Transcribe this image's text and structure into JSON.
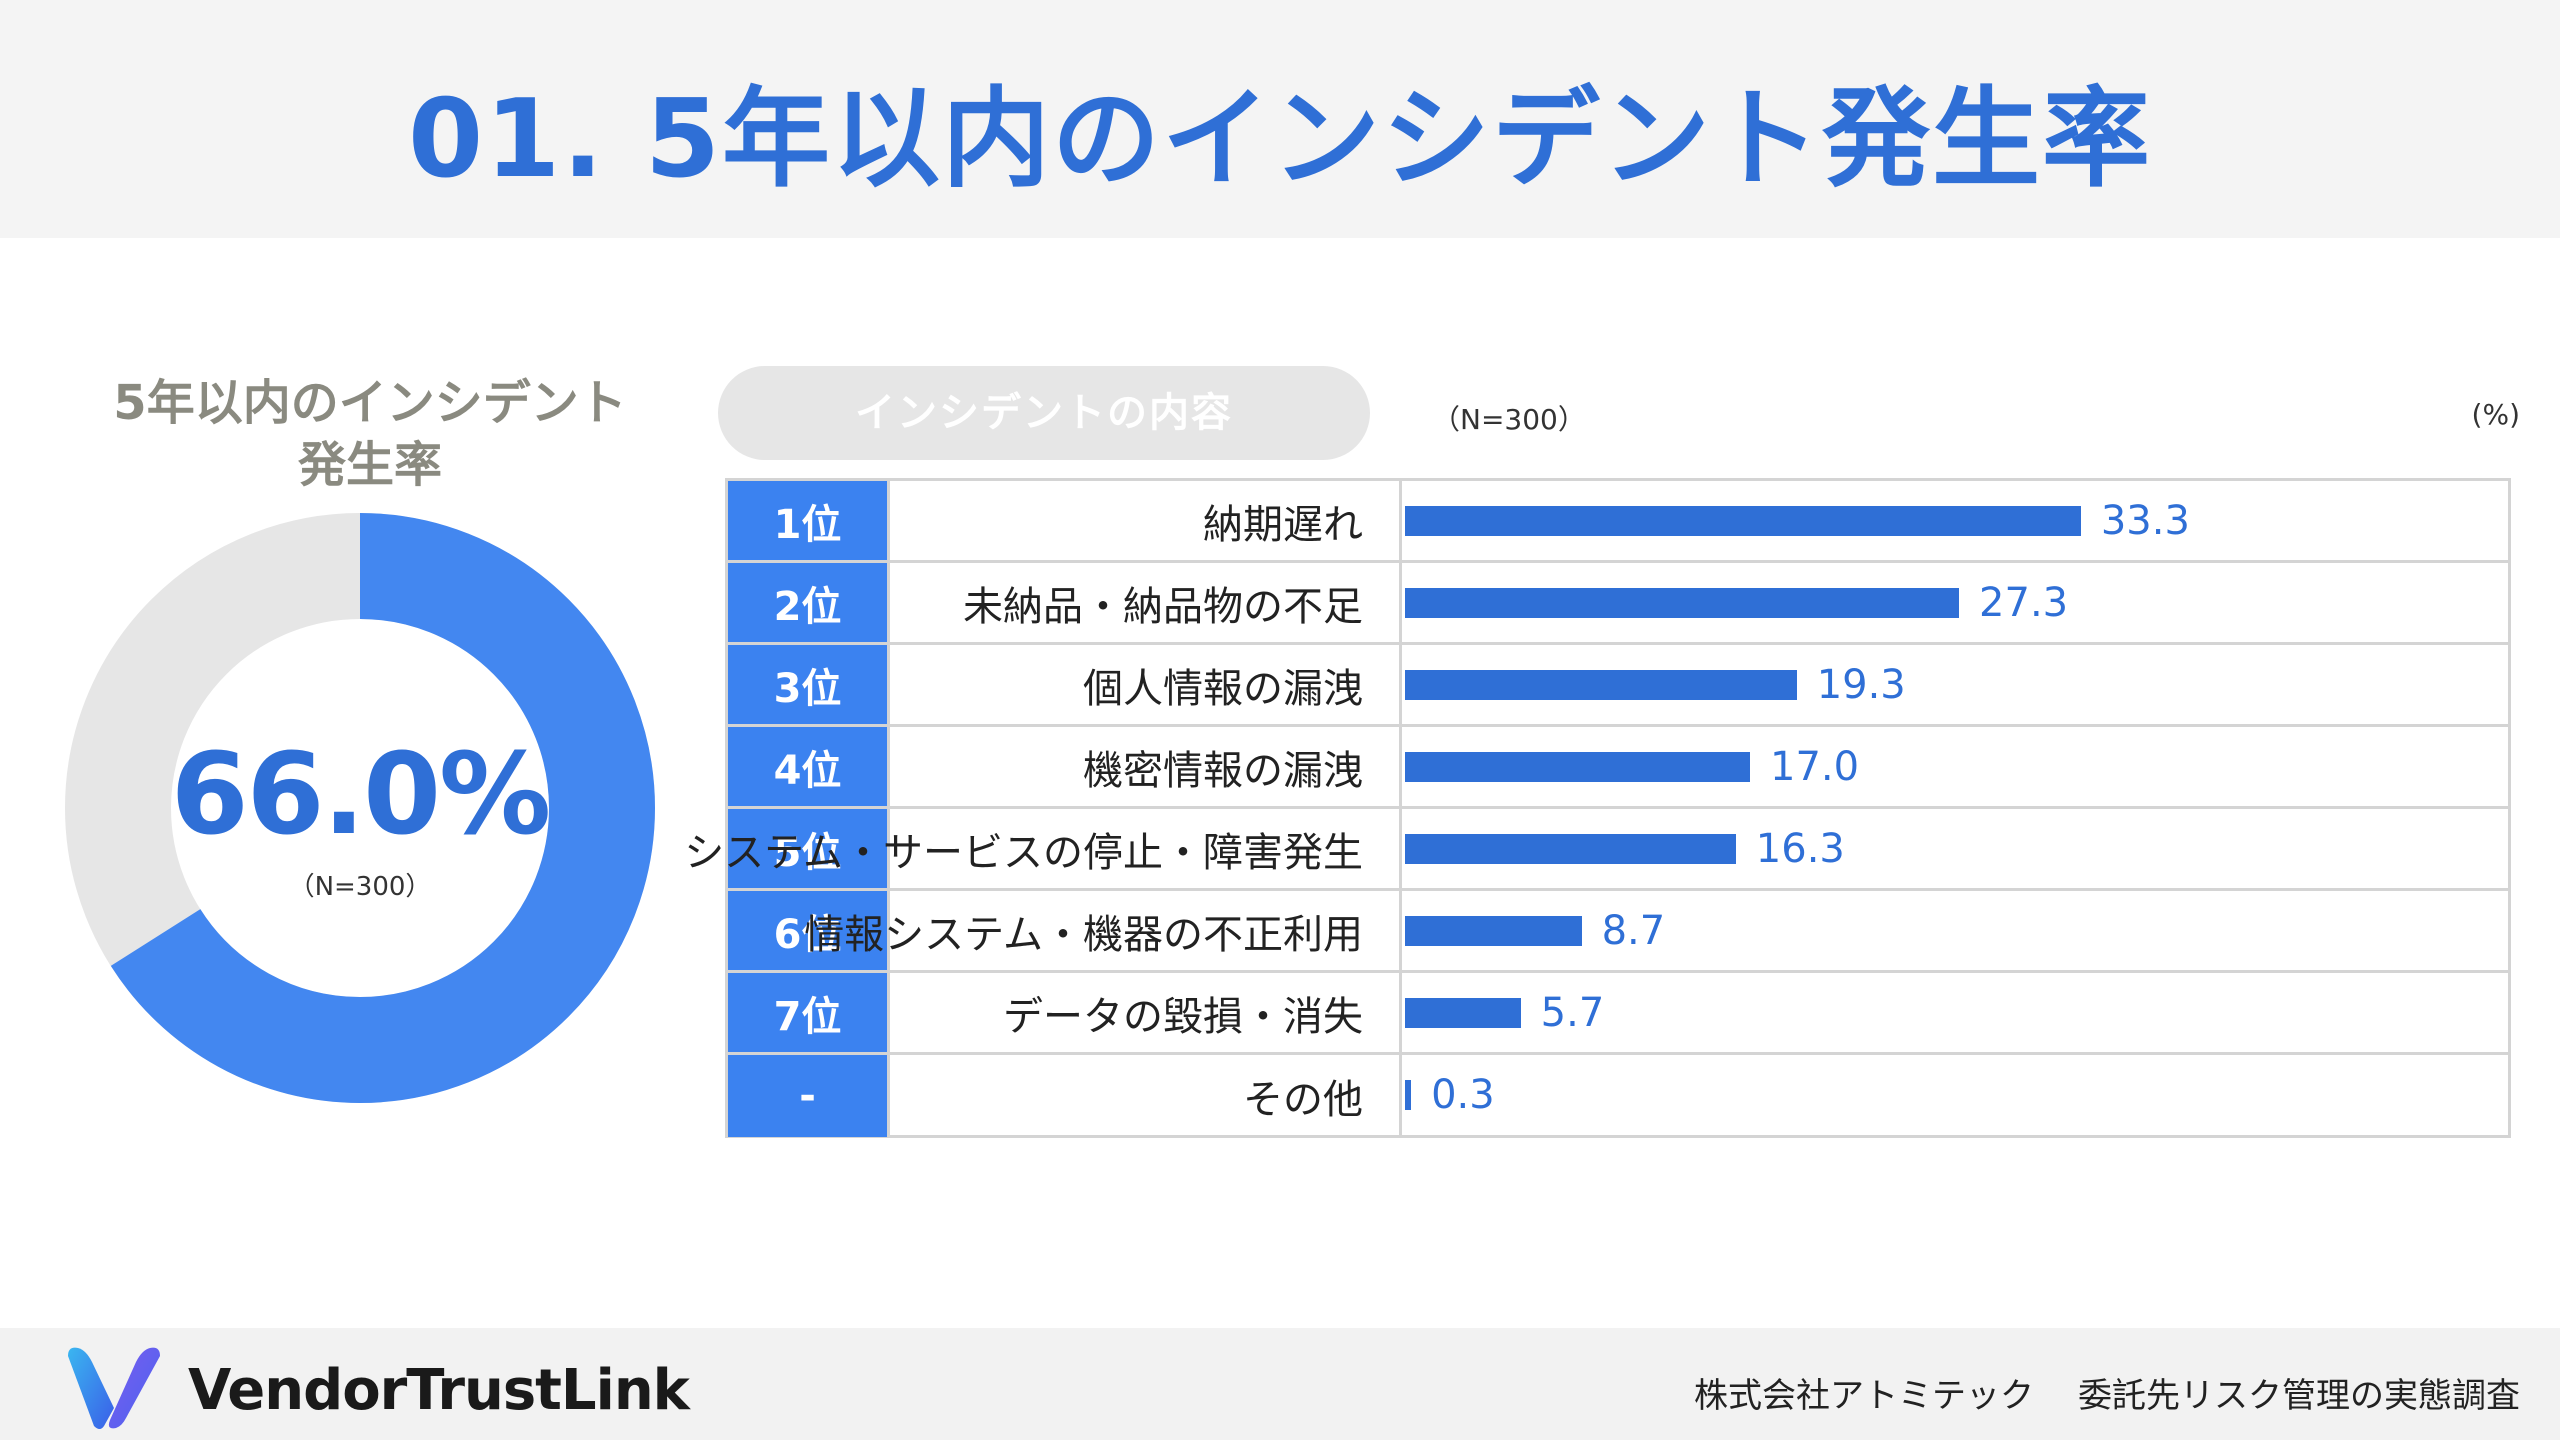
{
  "title": "01. 5年以内のインシデント発生率",
  "donut": {
    "title_line1": "5年以内のインシデント",
    "title_line2": "発生率",
    "percent_label": "66.0%",
    "n_label": "（N=300）",
    "value": 66.0,
    "colors": {
      "fill": "#4387f0",
      "rest": "#e6e6e6"
    }
  },
  "table_header": {
    "pill_label": "インシデントの内容",
    "n_label": "（N=300）",
    "unit_label": "(%)"
  },
  "chart_data": {
    "type": "bar",
    "orientation": "horizontal",
    "xlim": [
      0,
      50
    ],
    "rows": [
      {
        "rank": "1位",
        "category": "納期遅れ",
        "value": 33.3,
        "value_label": "33.3"
      },
      {
        "rank": "2位",
        "category": "未納品・納品物の不足",
        "value": 27.3,
        "value_label": "27.3"
      },
      {
        "rank": "3位",
        "category": "個人情報の漏洩",
        "value": 19.3,
        "value_label": "19.3"
      },
      {
        "rank": "4位",
        "category": "機密情報の漏洩",
        "value": 17.0,
        "value_label": "17.0"
      },
      {
        "rank": "5位",
        "category": "システム・サービスの停止・障害発生",
        "value": 16.3,
        "value_label": "16.3"
      },
      {
        "rank": "6位",
        "category": "情報システム・機器の不正利用",
        "value": 8.7,
        "value_label": "8.7"
      },
      {
        "rank": "7位",
        "category": "データの毀損・消失",
        "value": 5.7,
        "value_label": "5.7"
      },
      {
        "rank": "-",
        "category": "その他",
        "value": 0.3,
        "value_label": "0.3"
      }
    ],
    "bar_color": "#2f6fd6"
  },
  "footer": {
    "brand": "VendorTrustLink",
    "company": "株式会社アトミテック",
    "survey": "委託先リスク管理の実態調査"
  },
  "logo": {
    "icon": "v-logo-icon"
  }
}
